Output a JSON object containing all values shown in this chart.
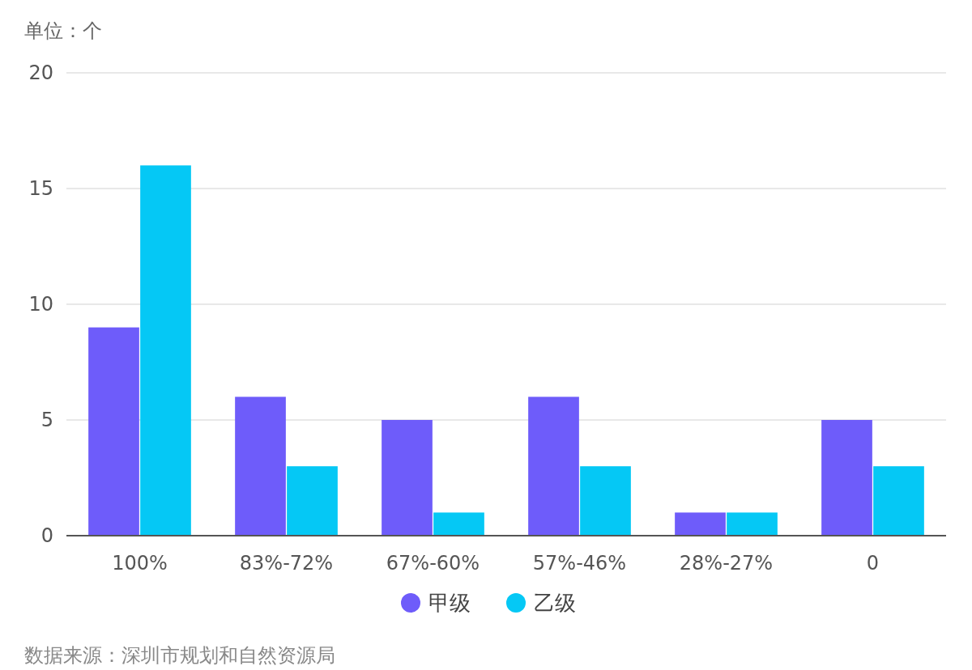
{
  "chart_data": {
    "type": "bar",
    "ylabel": "单位：个",
    "categories": [
      "100%",
      "83%-72%",
      "67%-60%",
      "57%-46%",
      "28%-27%",
      "0"
    ],
    "series": [
      {
        "name": "甲级",
        "color": "#6e5cfa",
        "values": [
          9,
          6,
          5,
          6,
          1,
          5
        ]
      },
      {
        "name": "乙级",
        "color": "#05c8f5",
        "values": [
          16,
          3,
          1,
          3,
          1,
          3
        ]
      }
    ],
    "ylim": [
      0,
      20
    ],
    "yticks": [
      0,
      5,
      10,
      15,
      20
    ],
    "grid": "y",
    "legend": "bottom",
    "annotations": [
      "数据来源：深圳市规划和自然资源局"
    ]
  }
}
